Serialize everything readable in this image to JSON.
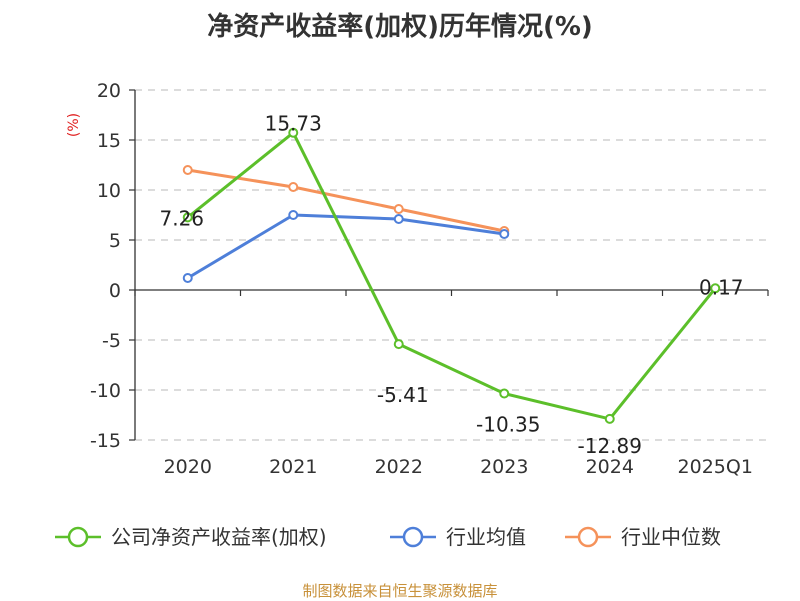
{
  "title": "净资产收益率(加权)历年情况(%)",
  "source": "制图数据来自恒生聚源数据库",
  "chart_data": {
    "type": "line",
    "title": "净资产收益率(加权)历年情况(%)",
    "ylabel": "(%)",
    "ylim": [
      -15,
      20
    ],
    "yticks": [
      20,
      15,
      10,
      5,
      0,
      -5,
      -10,
      -15
    ],
    "categories": [
      "2020",
      "2021",
      "2022",
      "2023",
      "2024",
      "2025Q1"
    ],
    "grid": true,
    "legend_position": "bottom",
    "series": [
      {
        "name": "公司净资产收益率(加权)",
        "color": "#5cbf2a",
        "values": [
          7.26,
          15.73,
          -5.41,
          -10.35,
          -12.89,
          0.17
        ],
        "labels": [
          "7.26",
          "15.73",
          "-5.41",
          "-10.35",
          "-12.89",
          "0.17"
        ]
      },
      {
        "name": "行业均值",
        "color": "#4e7fd9",
        "values": [
          1.2,
          7.5,
          7.1,
          5.6,
          null,
          null
        ]
      },
      {
        "name": "行业中位数",
        "color": "#f5925a",
        "values": [
          12.0,
          10.3,
          8.1,
          5.9,
          null,
          null
        ]
      }
    ]
  }
}
